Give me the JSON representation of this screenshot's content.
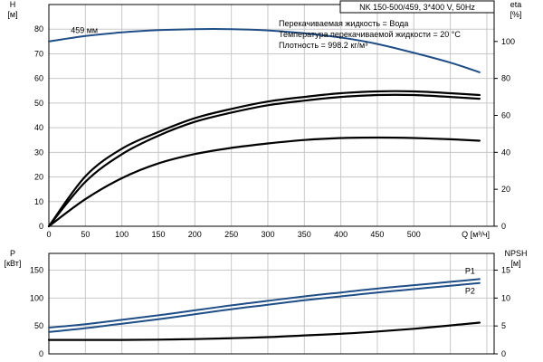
{
  "chart_data": [
    {
      "type": "line",
      "title": "NK 150-500/459, 3*400 V, 50Hz",
      "xlabel": "Q [м³/ч]",
      "x_ticks": [
        0,
        50,
        100,
        150,
        200,
        250,
        300,
        350,
        400,
        450,
        500
      ],
      "xlim": [
        0,
        610
      ],
      "left_axis": {
        "unit": "[м]",
        "name": "H",
        "ylim": [
          0,
          90
        ],
        "ticks": [
          0,
          10,
          20,
          30,
          40,
          50,
          60,
          70,
          80
        ]
      },
      "right_axis": {
        "unit": "[%]",
        "name": "eta",
        "ylim": [
          0,
          120
        ],
        "ticks": [
          0,
          20,
          40,
          60,
          80,
          100
        ]
      },
      "info_lines": [
        "Перекачиваемая жидкость = Вода",
        "Температура перекачиваемой жидкости = 20 °C",
        "Плотность = 998.2 кг/м³"
      ],
      "grid": true,
      "series": [
        {
          "name": "459 мм",
          "axis": "left",
          "color": "#1f4e87",
          "x": [
            0,
            50,
            100,
            150,
            200,
            250,
            300,
            350,
            400,
            450,
            500,
            550,
            590
          ],
          "y": [
            75,
            77.2,
            78.7,
            79.6,
            80,
            80,
            79.5,
            78.3,
            76.6,
            74,
            70.4,
            66.4,
            62.5
          ]
        },
        {
          "axis": "right",
          "color": "#000000",
          "x": [
            0,
            50,
            100,
            150,
            200,
            250,
            300,
            350,
            400,
            450,
            500,
            550,
            590
          ],
          "y": [
            0,
            24,
            39,
            49,
            56.5,
            61.5,
            65.5,
            68,
            70,
            71,
            71,
            70,
            69
          ]
        },
        {
          "axis": "right",
          "color": "#000000",
          "x": [
            0,
            50,
            100,
            150,
            200,
            250,
            300,
            350,
            400,
            450,
            500,
            550,
            590
          ],
          "y": [
            0,
            27,
            42,
            51,
            58.5,
            63.5,
            67.5,
            70,
            72,
            73,
            73,
            72,
            71
          ]
        },
        {
          "axis": "left",
          "color": "#000000",
          "x": [
            0,
            50,
            100,
            150,
            200,
            250,
            300,
            350,
            400,
            450,
            500,
            550,
            590
          ],
          "y": [
            0,
            11,
            19.5,
            25.5,
            29.3,
            31.8,
            33.6,
            35,
            35.8,
            36,
            35.8,
            35.3,
            34.7
          ]
        }
      ]
    },
    {
      "type": "line",
      "xlim": [
        0,
        610
      ],
      "left_axis": {
        "name": "P",
        "unit": "[кВт]",
        "ylim": [
          0,
          180
        ],
        "ticks": [
          0,
          50,
          100,
          150
        ]
      },
      "right_axis": {
        "name": "NPSH",
        "unit": "[м]",
        "ylim": [
          0,
          18
        ],
        "ticks": [
          0,
          5,
          10,
          15
        ]
      },
      "grid": true,
      "series": [
        {
          "name": "P1",
          "axis": "left",
          "color": "#1f4e87",
          "x": [
            0,
            50,
            100,
            150,
            200,
            250,
            300,
            350,
            400,
            450,
            500,
            550,
            590
          ],
          "y": [
            47,
            53,
            61,
            69,
            78,
            87,
            95,
            103,
            110,
            117,
            123,
            129,
            134
          ]
        },
        {
          "name": "P2",
          "axis": "left",
          "color": "#1f4e87",
          "x": [
            0,
            50,
            100,
            150,
            200,
            250,
            300,
            350,
            400,
            450,
            500,
            550,
            590
          ],
          "y": [
            39,
            46,
            54,
            62,
            71,
            80,
            88,
            96,
            103,
            110,
            116,
            122,
            127
          ]
        },
        {
          "axis": "right",
          "color": "#000000",
          "x": [
            0,
            50,
            100,
            150,
            200,
            250,
            300,
            350,
            400,
            450,
            500,
            550,
            590
          ],
          "y": [
            2.5,
            2.5,
            2.5,
            2.55,
            2.65,
            2.8,
            3,
            3.3,
            3.6,
            4,
            4.5,
            5.1,
            5.6
          ]
        }
      ]
    }
  ]
}
